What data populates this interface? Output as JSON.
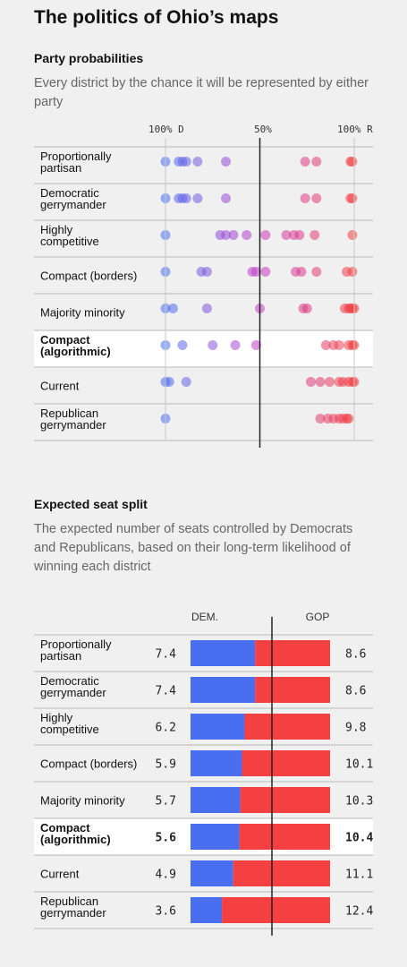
{
  "title": "The politics of Ohio’s maps",
  "prob_section": {
    "title": "Party probabilities",
    "subtitle": "Every district by the chance it will be represented by either party"
  },
  "seat_section": {
    "title": "Expected seat split",
    "subtitle": "The expected number of seats controlled by Democrats and Republicans, based on their long-term likelihood of winning each district",
    "dem_header": "DEM.",
    "gop_header": "GOP"
  },
  "colors": {
    "dem": "#4a6ef0",
    "gop": "#f44040",
    "highlight_row": "#ffffff",
    "background": "#f0f0f0"
  },
  "chart_data": [
    {
      "type": "scatter",
      "title": "Party probabilities",
      "axis_ticks": [
        "100% D",
        "50%",
        "100% R"
      ],
      "x_description": "Republican win probability (0 = 100% D, 1 = 100% R)",
      "xlim": [
        0,
        1
      ],
      "series": [
        {
          "name": "Proportionally partisan",
          "highlight": false,
          "values": [
            0.0,
            0.07,
            0.09,
            0.11,
            0.17,
            0.32,
            0.74,
            0.8,
            0.98,
            0.99
          ]
        },
        {
          "name": "Democratic gerrymander",
          "highlight": false,
          "values": [
            0.0,
            0.07,
            0.09,
            0.11,
            0.17,
            0.32,
            0.74,
            0.8,
            0.98,
            0.99
          ]
        },
        {
          "name": "Highly competitive",
          "highlight": false,
          "values": [
            0.0,
            0.29,
            0.32,
            0.36,
            0.43,
            0.53,
            0.64,
            0.68,
            0.71,
            0.79,
            0.99
          ]
        },
        {
          "name": "Compact (borders)",
          "highlight": false,
          "values": [
            0.0,
            0.19,
            0.22,
            0.46,
            0.48,
            0.53,
            0.69,
            0.72,
            0.8,
            0.96,
            0.99
          ]
        },
        {
          "name": "Majority minority",
          "highlight": false,
          "values": [
            0.0,
            0.04,
            0.22,
            0.5,
            0.73,
            0.75,
            0.95,
            0.97,
            0.98,
            0.99,
            1.0
          ]
        },
        {
          "name": "Compact (algorithmic)",
          "highlight": true,
          "values": [
            0.0,
            0.09,
            0.25,
            0.37,
            0.48,
            0.85,
            0.89,
            0.92,
            0.97,
            0.99,
            1.0
          ]
        },
        {
          "name": "Current",
          "highlight": false,
          "values": [
            0.0,
            0.02,
            0.11,
            0.77,
            0.82,
            0.87,
            0.92,
            0.94,
            0.97,
            0.99,
            1.0
          ]
        },
        {
          "name": "Republican gerrymander",
          "highlight": false,
          "values": [
            0.0,
            0.82,
            0.86,
            0.89,
            0.92,
            0.94,
            0.96,
            0.97
          ]
        }
      ]
    },
    {
      "type": "bar",
      "title": "Expected seat split",
      "total_seats": 16,
      "categories": [
        "Proportionally partisan",
        "Democratic gerrymander",
        "Highly competitive",
        "Compact (borders)",
        "Majority minority",
        "Compact (algorithmic)",
        "Current",
        "Republican gerrymander"
      ],
      "highlight": [
        false,
        false,
        false,
        false,
        false,
        true,
        false,
        false
      ],
      "series": [
        {
          "name": "DEM.",
          "values": [
            7.4,
            7.4,
            6.2,
            5.9,
            5.7,
            5.6,
            4.9,
            3.6
          ]
        },
        {
          "name": "GOP",
          "values": [
            8.6,
            8.6,
            9.8,
            10.1,
            10.3,
            10.4,
            11.1,
            12.4
          ]
        }
      ]
    }
  ]
}
